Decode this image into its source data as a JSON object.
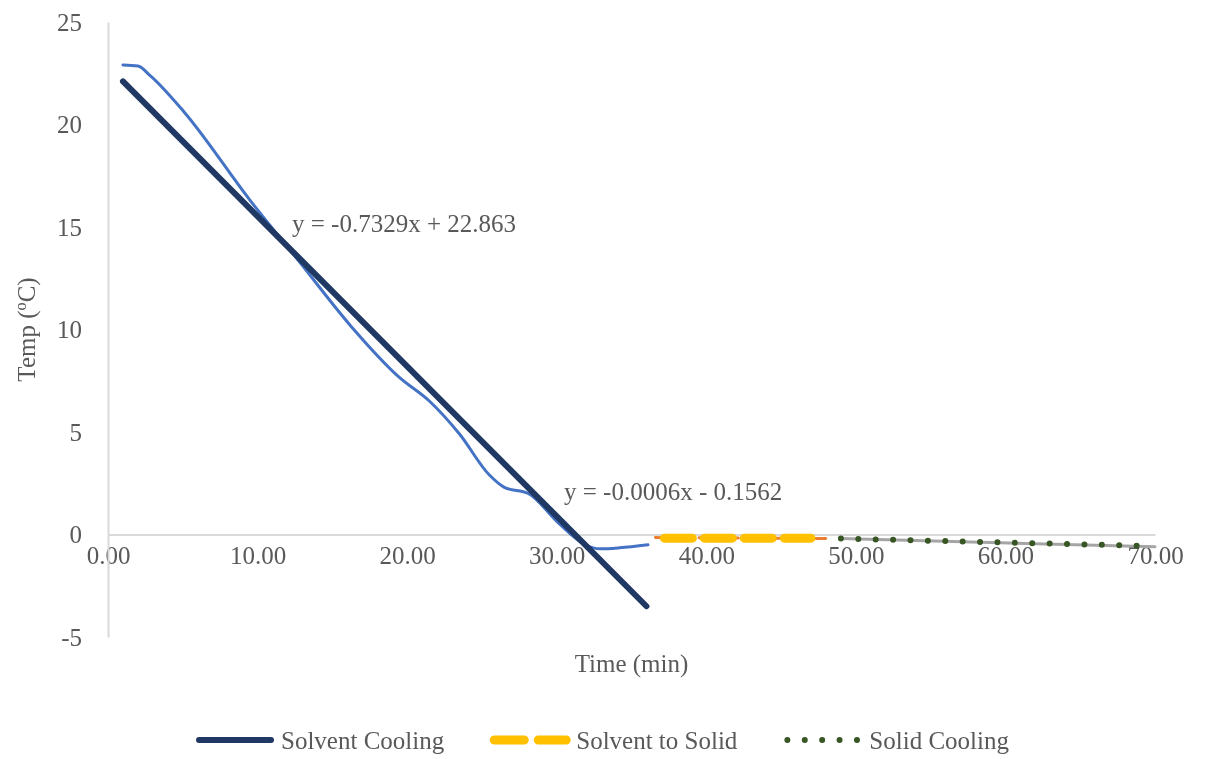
{
  "chart_data": {
    "type": "line",
    "xlabel": "Time (min)",
    "ylabel": "Temp ($^{o}$C)",
    "xlim": [
      0,
      70
    ],
    "ylim": [
      -5,
      25
    ],
    "xticks": [
      {
        "value": 0,
        "label": "0.00"
      },
      {
        "value": 10,
        "label": "10.00"
      },
      {
        "value": 20,
        "label": "20.00"
      },
      {
        "value": 30,
        "label": "30.00"
      },
      {
        "value": 40,
        "label": "40.00"
      },
      {
        "value": 50,
        "label": "50.00"
      },
      {
        "value": 60,
        "label": "60.00"
      },
      {
        "value": 70,
        "label": "70.00"
      }
    ],
    "yticks": [
      -5,
      0,
      5,
      10,
      15,
      20,
      25
    ],
    "grid": false,
    "legend": "bottom",
    "marker": "none",
    "series": [
      {
        "color": "#4472c4",
        "line_style": "solid",
        "x": [
          1.0,
          2.0,
          2.8,
          5.1,
          9.5,
          12.8,
          16.2,
          19.5,
          21.5,
          23.5,
          25.5,
          26.5,
          28.1,
          30.2,
          31.9,
          32.9,
          34.2,
          36.1
        ],
        "values": [
          22.9,
          22.85,
          22.4,
          20.6,
          16.3,
          13.3,
          10.2,
          7.65,
          6.5,
          4.9,
          2.9,
          2.3,
          2.0,
          0.5,
          -0.5,
          -0.7,
          -0.65,
          -0.5
        ]
      },
      {
        "name": "Solvent Cooling",
        "color": "#1f3864",
        "line_style": "solid",
        "x": [
          1,
          36
        ],
        "values": [
          22.1,
          -3.5
        ]
      },
      {
        "color": "#ed7d31",
        "line_style": "dashed",
        "x": [
          36.6,
          48
        ],
        "values": [
          -0.15,
          -0.2
        ]
      },
      {
        "name": "Solvent to Solid",
        "color": "#ffc000",
        "line_style": "dashed",
        "x": [
          37.2,
          47
        ],
        "values": [
          -0.18,
          -0.18
        ]
      },
      {
        "color": "#a5a5a5",
        "line_style": "solid",
        "x": [
          49,
          70
        ],
        "values": [
          -0.2,
          -0.6
        ]
      },
      {
        "name": "Solid Cooling",
        "color": "#375623",
        "line_style": "dotted",
        "x": [
          49,
          69
        ],
        "values": [
          -0.2,
          -0.55
        ]
      }
    ],
    "annotations": [
      "y = -0.7329x + 22.863",
      "y = -0.0006x - 0.1562"
    ]
  }
}
